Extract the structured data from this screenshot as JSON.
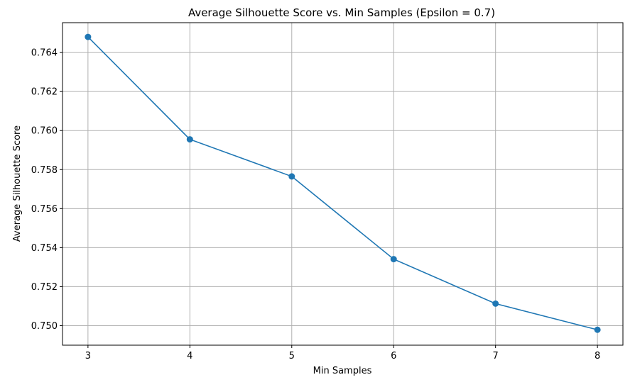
{
  "chart_data": {
    "type": "line",
    "title": "Average Silhouette Score vs. Min Samples (Epsilon = 0.7)",
    "xlabel": "Min Samples",
    "ylabel": "Average Silhouette Score",
    "x": [
      3,
      4,
      5,
      6,
      7,
      8
    ],
    "series": [
      {
        "values": [
          0.7648,
          0.75955,
          0.75765,
          0.75341,
          0.75113,
          0.74979
        ],
        "color": "#1f77b4"
      }
    ],
    "xticks": [
      "3",
      "4",
      "5",
      "6",
      "7",
      "8"
    ],
    "yticks": [
      "0.750",
      "0.752",
      "0.754",
      "0.756",
      "0.758",
      "0.760",
      "0.762",
      "0.764"
    ],
    "xlim": [
      2.75,
      8.25
    ],
    "ylim": [
      0.749,
      0.76553
    ],
    "grid": true,
    "marker": "circle"
  }
}
